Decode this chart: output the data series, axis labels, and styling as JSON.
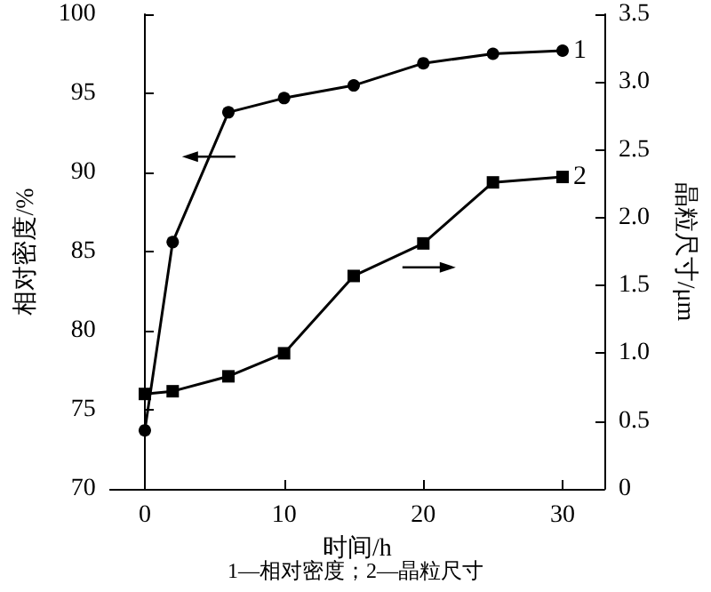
{
  "chart_data": {
    "type": "line",
    "xlabel": "时间/h",
    "ylabel": "相对密度/%",
    "y2label": "晶粒尺寸/μm",
    "annotations": [
      "1—相对密度；2—晶粒尺寸"
    ],
    "x": [
      0,
      2,
      6,
      10,
      15,
      20,
      25,
      30
    ],
    "series": [
      {
        "name": "1",
        "color": "#000000",
        "marker": "circle",
        "values": [
          73.7,
          85.6,
          93.8,
          94.7,
          95.5,
          96.9,
          97.5,
          97.7
        ]
      },
      {
        "name": "2",
        "color": "#000000",
        "marker": "square",
        "axis": "y2",
        "values": [
          0.7,
          0.72,
          0.83,
          1.0,
          1.57,
          1.81,
          2.26,
          2.3
        ]
      }
    ],
    "xlim": [
      -2.5,
      33
    ],
    "xticks": [
      0,
      10,
      20,
      30
    ],
    "ylim": [
      70,
      100
    ],
    "yticks": [
      70,
      75,
      80,
      85,
      90,
      95,
      100
    ],
    "y2lim": [
      0,
      3.5
    ],
    "y2ticks": [
      0,
      {
        "value": 0.5,
        "label": "0.5"
      },
      {
        "value": 1,
        "label": "1.0"
      },
      {
        "value": 1.5,
        "label": "1.5"
      },
      {
        "value": 2,
        "label": "2.0"
      },
      {
        "value": 2.5,
        "label": "2.5"
      },
      {
        "value": 3,
        "label": "3.0"
      },
      {
        "value": 3.5,
        "label": "3.5"
      }
    ],
    "grid": false,
    "legend": false,
    "line_style": "solid"
  }
}
